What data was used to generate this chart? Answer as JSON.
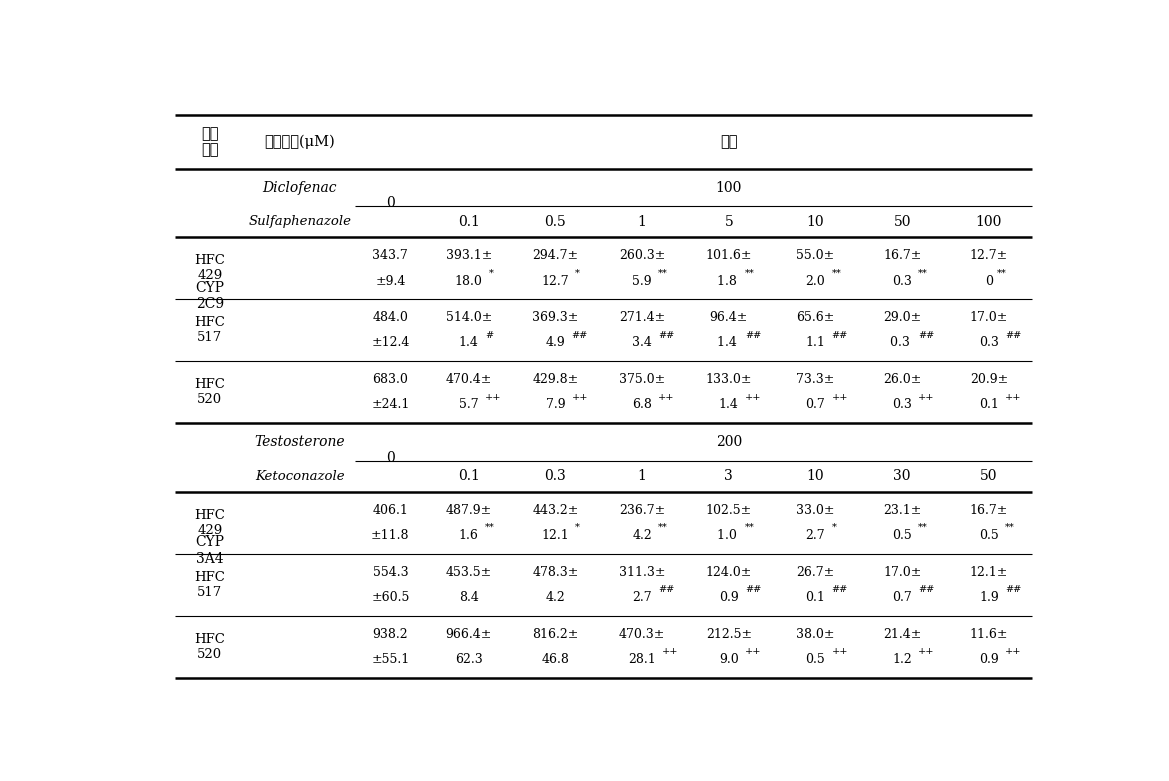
{
  "background_color": "#ffffff",
  "col1_header": "측정\n항목",
  "col2_header": "시험물질(μM)",
  "nongdo_header": "농도",
  "cyp2c9_label": "CYP\n2C9",
  "cyp3a4_label": "CYP\n3A4",
  "diclofenac_label": "Diclofenac",
  "sulfaphenazole_label": "Sulfaphenazole",
  "testosterone_label": "Testosterone",
  "ketoconazole_label": "Ketoconazole",
  "cyp2c9_100_label": "100",
  "cyp3a4_200_label": "200",
  "cyp2c9_zero": "0",
  "cyp3a4_zero": "0",
  "cyp2c9_sub_cols": [
    "0.1",
    "0.5",
    "1",
    "5",
    "10",
    "50",
    "100"
  ],
  "cyp3a4_sub_cols": [
    "0.1",
    "0.3",
    "1",
    "3",
    "10",
    "30",
    "50"
  ],
  "hfc_labels": [
    "HFC\n429",
    "HFC\n517",
    "HFC\n520"
  ],
  "cyp2c9_data": [
    [
      [
        "343.7",
        "±9.4",
        ""
      ],
      [
        "393.1±",
        "18.0",
        "*"
      ],
      [
        "294.7±",
        "12.7",
        "*"
      ],
      [
        "260.3±",
        "5.9",
        "**"
      ],
      [
        "101.6±",
        "1.8 ",
        "**"
      ],
      [
        "55.0±",
        "2.0",
        "**"
      ],
      [
        "16.7±",
        "0.3",
        "**"
      ],
      [
        "12.7±",
        "0",
        "**"
      ]
    ],
    [
      [
        "484.0",
        "±12.4",
        ""
      ],
      [
        "514.0±",
        "1.4",
        "#"
      ],
      [
        "369.3±",
        "4.9",
        "##"
      ],
      [
        "271.4±",
        "3.4",
        "##"
      ],
      [
        "96.4±",
        "1.4 ",
        "##"
      ],
      [
        "65.6±",
        "1.1",
        "##"
      ],
      [
        "29.0±",
        "0.3 ",
        "##"
      ],
      [
        "17.0±",
        "0.3",
        "##"
      ]
    ],
    [
      [
        "683.0",
        "±24.1",
        ""
      ],
      [
        "470.4±",
        "5.7",
        "++"
      ],
      [
        "429.8±",
        "7.9",
        "++"
      ],
      [
        "375.0±",
        "6.8",
        "++"
      ],
      [
        "133.0±",
        "1.4",
        "++"
      ],
      [
        "73.3±",
        "0.7",
        "++"
      ],
      [
        "26.0±",
        "0.3",
        "++"
      ],
      [
        "20.9±",
        "0.1",
        "++"
      ]
    ]
  ],
  "cyp3a4_data": [
    [
      [
        "406.1",
        "±11.8",
        ""
      ],
      [
        "487.9±",
        "1.6",
        "**"
      ],
      [
        "443.2±",
        "12.1",
        "*"
      ],
      [
        "236.7±",
        "4.2",
        "**"
      ],
      [
        "102.5±",
        "1.0 ",
        "**"
      ],
      [
        "33.0±",
        "2.7",
        "*"
      ],
      [
        "23.1±",
        "0.5",
        "**"
      ],
      [
        "16.7±",
        "0.5",
        "**"
      ]
    ],
    [
      [
        "554.3",
        "±60.5",
        ""
      ],
      [
        "453.5±",
        "8.4",
        ""
      ],
      [
        "478.3±",
        "4.2",
        ""
      ],
      [
        "311.3±",
        "2.7",
        "##"
      ],
      [
        "124.0±",
        "0.9",
        "##"
      ],
      [
        "26.7±",
        "0.1",
        "##"
      ],
      [
        "17.0±",
        "0.7",
        "##"
      ],
      [
        "12.1±",
        "1.9",
        "##"
      ]
    ],
    [
      [
        "938.2",
        "±55.1",
        ""
      ],
      [
        "966.4±",
        "62.3",
        ""
      ],
      [
        "816.2±",
        "46.8",
        ""
      ],
      [
        "470.3±",
        "28.1",
        "++"
      ],
      [
        "212.5±",
        "9.0",
        "++"
      ],
      [
        "38.0±",
        "0.5",
        "++"
      ],
      [
        "21.4±",
        "1.2",
        "++"
      ],
      [
        "11.6±",
        "0.9",
        "++"
      ]
    ]
  ]
}
